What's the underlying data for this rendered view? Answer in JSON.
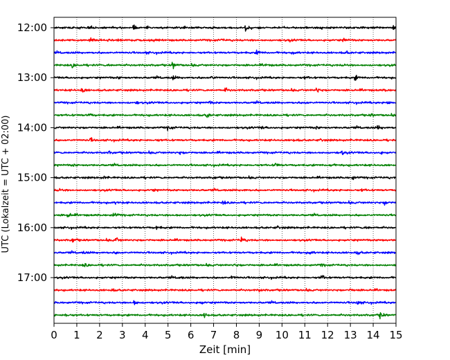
{
  "chart_data": {
    "type": "line",
    "subtype": "helicorder",
    "xlabel": "Zeit  [min]",
    "ylabel": "UTC (Lokalzeit = UTC + 02:00)",
    "xlim": [
      0,
      15
    ],
    "xticks": [
      0,
      1,
      2,
      3,
      4,
      5,
      6,
      7,
      8,
      9,
      10,
      11,
      12,
      13,
      14,
      15
    ],
    "xtick_labels": [
      "0",
      "1",
      "2",
      "3",
      "4",
      "5",
      "6",
      "7",
      "8",
      "9",
      "10",
      "11",
      "12",
      "13",
      "14",
      "15"
    ],
    "ytick_labels": [
      "12:00",
      "13:00",
      "14:00",
      "15:00",
      "16:00",
      "17:00"
    ],
    "minutes_per_line": 15,
    "grid": "vertical dotted at each minute",
    "color_cycle": [
      "#000000",
      "#ff0000",
      "#0000ff",
      "#008000"
    ],
    "series": [
      {
        "start": "12:00",
        "events": [
          [
            3.5,
            0.8
          ],
          [
            8.4,
            1.0
          ],
          [
            12.0,
            0.6
          ],
          [
            14.9,
            0.7
          ],
          [
            1.5,
            0.3
          ],
          [
            5.4,
            0.3
          ]
        ]
      },
      {
        "start": "12:15",
        "events": [
          [
            1.6,
            0.9
          ],
          [
            2.8,
            0.3
          ],
          [
            7.3,
            0.3
          ],
          [
            10.3,
            0.3
          ],
          [
            12.7,
            0.6
          ]
        ]
      },
      {
        "start": "12:30",
        "events": [
          [
            4.0,
            0.3
          ],
          [
            8.9,
            0.7
          ],
          [
            10.5,
            0.35
          ],
          [
            12.8,
            0.35
          ]
        ]
      },
      {
        "start": "12:45",
        "events": [
          [
            0.8,
            0.6
          ],
          [
            2.4,
            0.3
          ],
          [
            5.2,
            1.0
          ],
          [
            9.3,
            0.3
          ],
          [
            12.7,
            0.3
          ]
        ]
      },
      {
        "start": "13:00",
        "events": [
          [
            2.8,
            0.3
          ],
          [
            5.2,
            0.6
          ],
          [
            6.9,
            0.6
          ],
          [
            11.0,
            0.35
          ],
          [
            13.2,
            0.7
          ]
        ]
      },
      {
        "start": "13:15",
        "events": [
          [
            1.2,
            1.0
          ],
          [
            7.5,
            0.6
          ],
          [
            11.5,
            0.9
          ],
          [
            14.5,
            0.3
          ]
        ]
      },
      {
        "start": "13:30",
        "events": [
          [
            3.6,
            0.3
          ],
          [
            6.8,
            0.35
          ],
          [
            11.0,
            0.3
          ],
          [
            14.6,
            0.6
          ]
        ]
      },
      {
        "start": "13:45",
        "events": [
          [
            1.5,
            0.7
          ],
          [
            6.7,
            0.7
          ],
          [
            13.9,
            0.3
          ]
        ]
      },
      {
        "start": "14:00",
        "events": [
          [
            5.0,
            0.8
          ],
          [
            9.1,
            0.35
          ],
          [
            11.5,
            0.3
          ],
          [
            14.2,
            0.6
          ]
        ]
      },
      {
        "start": "14:15",
        "events": [
          [
            1.6,
            0.5
          ],
          [
            4.5,
            0.3
          ],
          [
            10.5,
            0.3
          ],
          [
            11.7,
            0.35
          ]
        ]
      },
      {
        "start": "14:30",
        "events": [
          [
            2.4,
            0.3
          ],
          [
            5.5,
            0.35
          ],
          [
            12.6,
            0.6
          ],
          [
            14.3,
            0.3
          ]
        ]
      },
      {
        "start": "14:45",
        "events": [
          [
            0.8,
            0.3
          ],
          [
            9.7,
            0.8
          ],
          [
            12.1,
            0.5
          ]
        ]
      },
      {
        "start": "15:00",
        "events": [
          [
            2.2,
            0.3
          ],
          [
            7.0,
            0.3
          ],
          [
            13.1,
            0.5
          ]
        ]
      },
      {
        "start": "15:15",
        "events": [
          [
            0.2,
            0.6
          ],
          [
            4.3,
            0.3
          ],
          [
            8.3,
            0.3
          ],
          [
            13.5,
            0.3
          ]
        ]
      },
      {
        "start": "15:30",
        "events": [
          [
            2.7,
            0.3
          ],
          [
            7.4,
            0.5
          ],
          [
            14.5,
            0.7
          ]
        ]
      },
      {
        "start": "15:45",
        "events": [
          [
            0.6,
            0.8
          ],
          [
            2.6,
            0.8
          ],
          [
            5.3,
            0.3
          ]
        ]
      },
      {
        "start": "16:00",
        "events": [
          [
            4.5,
            0.5
          ],
          [
            9.8,
            0.4
          ],
          [
            13.7,
            0.5
          ]
        ]
      },
      {
        "start": "16:15",
        "events": [
          [
            0.8,
            0.7
          ],
          [
            2.7,
            0.8
          ],
          [
            8.2,
            0.9
          ],
          [
            14.3,
            0.3
          ]
        ]
      },
      {
        "start": "16:30",
        "events": [
          [
            1.3,
            0.3
          ],
          [
            2.7,
            0.3
          ],
          [
            11.2,
            0.6
          ],
          [
            13.3,
            0.5
          ]
        ]
      },
      {
        "start": "16:45",
        "events": [
          [
            1.3,
            0.7
          ],
          [
            7.9,
            0.3
          ],
          [
            11.7,
            0.3
          ]
        ]
      },
      {
        "start": "17:00",
        "events": [
          [
            5.5,
            0.3
          ],
          [
            7.8,
            0.5
          ],
          [
            11.7,
            0.9
          ]
        ]
      },
      {
        "start": "17:15",
        "events": [
          [
            2.5,
            0.3
          ],
          [
            9.0,
            0.3
          ],
          [
            13.0,
            0.3
          ]
        ]
      },
      {
        "start": "17:30",
        "events": [
          [
            3.5,
            0.9
          ],
          [
            6.4,
            0.4
          ],
          [
            13.3,
            0.7
          ]
        ]
      },
      {
        "start": "17:45",
        "events": [
          [
            0.5,
            0.5
          ],
          [
            6.6,
            0.7
          ],
          [
            14.3,
            0.9
          ]
        ]
      }
    ]
  }
}
